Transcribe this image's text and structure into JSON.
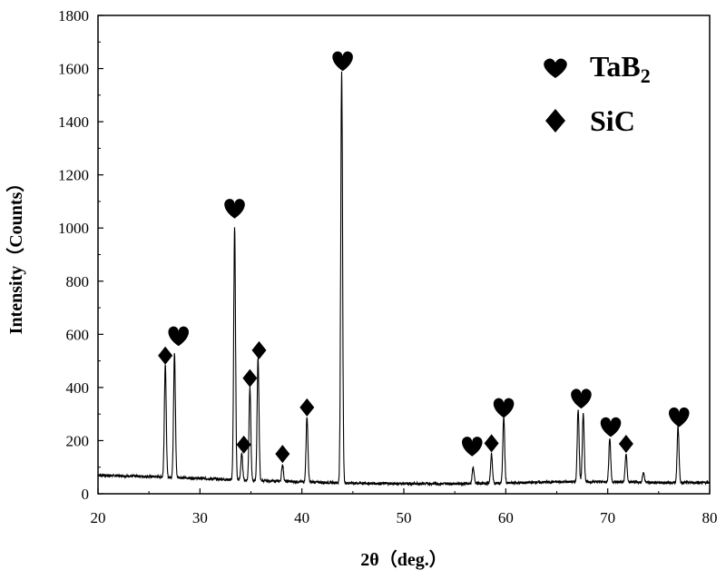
{
  "chart_data": {
    "type": "line",
    "title": "",
    "xlabel": "2θ（deg.）",
    "ylabel": "Intensity（Counts）",
    "xlim": [
      20,
      80
    ],
    "ylim": [
      0,
      1800
    ],
    "x_ticks": [
      20,
      30,
      40,
      50,
      60,
      70,
      80
    ],
    "y_ticks": [
      0,
      200,
      400,
      600,
      800,
      1000,
      1200,
      1400,
      1600,
      1800
    ],
    "grid": false,
    "legend": {
      "placement": "top-right",
      "entries": [
        {
          "marker": "heart-icon",
          "label": "TaB",
          "subscript": "2"
        },
        {
          "marker": "diamond-icon",
          "label": "SiC",
          "subscript": ""
        }
      ]
    },
    "series": [
      {
        "baseline": [
          [
            20,
            70
          ],
          [
            25,
            65
          ],
          [
            30,
            58
          ],
          [
            35,
            50
          ],
          [
            40,
            45
          ],
          [
            45,
            40
          ],
          [
            50,
            38
          ],
          [
            55,
            38
          ],
          [
            60,
            40
          ],
          [
            65,
            45
          ],
          [
            70,
            45
          ],
          [
            75,
            42
          ],
          [
            80,
            42
          ]
        ],
        "peaks": [
          {
            "x": 26.6,
            "y": 490,
            "phase": "SiC"
          },
          {
            "x": 27.5,
            "y": 530,
            "phase": "TaB2"
          },
          {
            "x": 33.4,
            "y": 1005,
            "phase": "TaB2"
          },
          {
            "x": 34.1,
            "y": 150,
            "phase": "SiC"
          },
          {
            "x": 34.9,
            "y": 400,
            "phase": "SiC"
          },
          {
            "x": 35.7,
            "y": 510,
            "phase": "SiC"
          },
          {
            "x": 38.1,
            "y": 110,
            "phase": "SiC"
          },
          {
            "x": 40.5,
            "y": 290,
            "phase": "SiC"
          },
          {
            "x": 43.9,
            "y": 1590,
            "phase": "TaB2"
          },
          {
            "x": 56.8,
            "y": 100,
            "phase": "TaB2"
          },
          {
            "x": 58.6,
            "y": 150,
            "phase": "SiC"
          },
          {
            "x": 59.8,
            "y": 290,
            "phase": "TaB2"
          },
          {
            "x": 67.1,
            "y": 320,
            "phase": "TaB2"
          },
          {
            "x": 67.6,
            "y": 305,
            "phase": "TaB2"
          },
          {
            "x": 70.2,
            "y": 210,
            "phase": "TaB2"
          },
          {
            "x": 71.8,
            "y": 150,
            "phase": "SiC"
          },
          {
            "x": 73.5,
            "y": 80,
            "phase": ""
          },
          {
            "x": 76.9,
            "y": 255,
            "phase": "TaB2"
          }
        ]
      }
    ],
    "markers": [
      {
        "x": 26.6,
        "y": 520,
        "type": "diamond"
      },
      {
        "x": 27.9,
        "y": 590,
        "type": "heart"
      },
      {
        "x": 33.4,
        "y": 1070,
        "type": "heart"
      },
      {
        "x": 34.3,
        "y": 185,
        "type": "diamond"
      },
      {
        "x": 34.9,
        "y": 435,
        "type": "diamond"
      },
      {
        "x": 35.8,
        "y": 540,
        "type": "diamond"
      },
      {
        "x": 38.1,
        "y": 150,
        "type": "diamond"
      },
      {
        "x": 40.5,
        "y": 325,
        "type": "diamond"
      },
      {
        "x": 44.0,
        "y": 1625,
        "type": "heart"
      },
      {
        "x": 56.7,
        "y": 175,
        "type": "heart"
      },
      {
        "x": 58.6,
        "y": 190,
        "type": "diamond"
      },
      {
        "x": 59.8,
        "y": 320,
        "type": "heart"
      },
      {
        "x": 67.4,
        "y": 355,
        "type": "heart"
      },
      {
        "x": 70.3,
        "y": 248,
        "type": "heart"
      },
      {
        "x": 71.8,
        "y": 188,
        "type": "diamond"
      },
      {
        "x": 77.0,
        "y": 285,
        "type": "heart"
      }
    ]
  }
}
